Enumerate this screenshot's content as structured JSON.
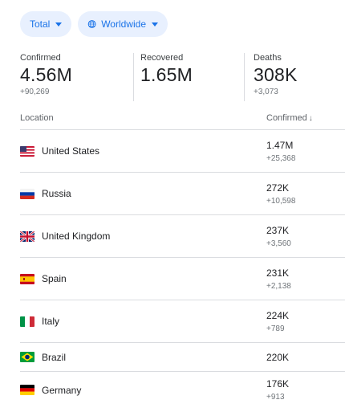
{
  "filters": {
    "metric_label": "Total",
    "region_label": "Worldwide"
  },
  "stats": [
    {
      "label": "Confirmed",
      "value": "4.56M",
      "delta": "+90,269"
    },
    {
      "label": "Recovered",
      "value": "1.65M",
      "delta": ""
    },
    {
      "label": "Deaths",
      "value": "308K",
      "delta": "+3,073"
    }
  ],
  "table": {
    "headers": {
      "location": "Location",
      "confirmed": "Confirmed"
    },
    "rows": [
      {
        "country": "United States",
        "confirmed": "1.47M",
        "delta": "+25,368",
        "flag": "us-flag"
      },
      {
        "country": "Russia",
        "confirmed": "272K",
        "delta": "+10,598",
        "flag": "ru-flag"
      },
      {
        "country": "United Kingdom",
        "confirmed": "237K",
        "delta": "+3,560",
        "flag": "gb-flag"
      },
      {
        "country": "Spain",
        "confirmed": "231K",
        "delta": "+2,138",
        "flag": "es-flag"
      },
      {
        "country": "Italy",
        "confirmed": "224K",
        "delta": "+789",
        "flag": "it-flag"
      },
      {
        "country": "Brazil",
        "confirmed": "220K",
        "delta": "",
        "flag": "br-flag"
      },
      {
        "country": "Germany",
        "confirmed": "176K",
        "delta": "+913",
        "flag": "de-flag"
      }
    ]
  },
  "colors": {
    "chip_bg": "#e8f0fe",
    "chip_text": "#1a73e8",
    "divider": "#dadce0"
  }
}
